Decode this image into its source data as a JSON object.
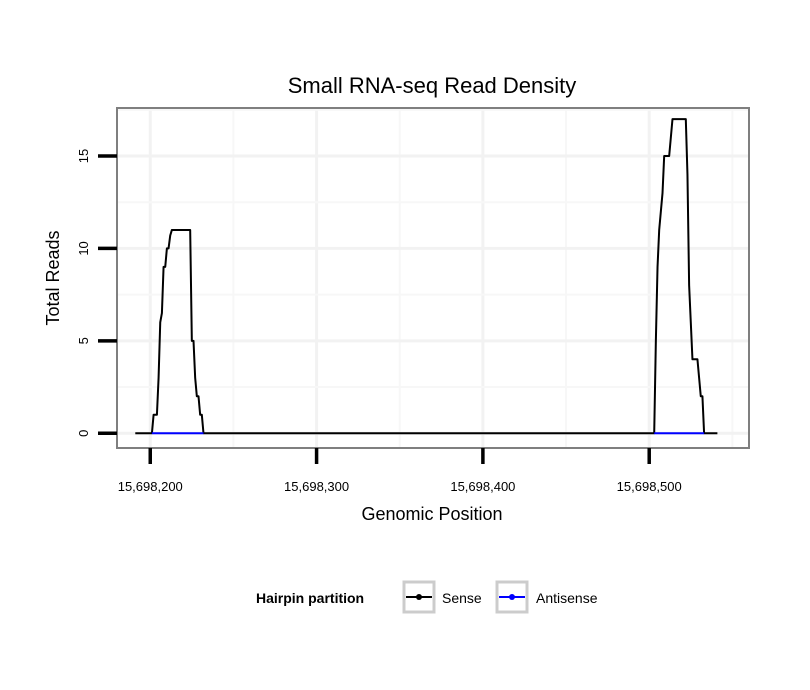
{
  "chart_data": {
    "type": "line",
    "title": "Small RNA-seq Read Density",
    "xlabel": "Genomic Position",
    "ylabel": "Total Reads",
    "xlim": [
      15698180,
      15698560
    ],
    "ylim": [
      -0.8,
      17.6
    ],
    "x_ticks": [
      15698200,
      15698300,
      15698400,
      15698500
    ],
    "x_tick_labels": [
      "15,698,200",
      "15,698,300",
      "15,698,400",
      "15,698,500"
    ],
    "y_ticks": [
      0,
      5,
      10,
      15
    ],
    "y_tick_labels": [
      "0",
      "5",
      "10",
      "15"
    ],
    "grid": true,
    "legend": {
      "title": "Hairpin partition",
      "position": "bottom",
      "entries": [
        {
          "label": "Sense",
          "color": "#000000"
        },
        {
          "label": "Antisense",
          "color": "#0000ff"
        }
      ]
    },
    "series": [
      {
        "name": "Sense",
        "color": "#000000",
        "points": [
          [
            15698191,
            0
          ],
          [
            15698201,
            0
          ],
          [
            15698202,
            1
          ],
          [
            15698204,
            1
          ],
          [
            15698205,
            3
          ],
          [
            15698206,
            6
          ],
          [
            15698207,
            6.5
          ],
          [
            15698208,
            9
          ],
          [
            15698209,
            9
          ],
          [
            15698210,
            10
          ],
          [
            15698211,
            10
          ],
          [
            15698212,
            10.7
          ],
          [
            15698213,
            11
          ],
          [
            15698224,
            11
          ],
          [
            15698225,
            5
          ],
          [
            15698226,
            5
          ],
          [
            15698227,
            3
          ],
          [
            15698228,
            2
          ],
          [
            15698229,
            2
          ],
          [
            15698230,
            1
          ],
          [
            15698231,
            1
          ],
          [
            15698232,
            0
          ],
          [
            15698503,
            0
          ],
          [
            15698504,
            5
          ],
          [
            15698505,
            9
          ],
          [
            15698506,
            11
          ],
          [
            15698507,
            12
          ],
          [
            15698508,
            13
          ],
          [
            15698509,
            15
          ],
          [
            15698512,
            15
          ],
          [
            15698513,
            16
          ],
          [
            15698514,
            17
          ],
          [
            15698522,
            17
          ],
          [
            15698523,
            14
          ],
          [
            15698524,
            8
          ],
          [
            15698525,
            6
          ],
          [
            15698526,
            4
          ],
          [
            15698529,
            4
          ],
          [
            15698530,
            3
          ],
          [
            15698531,
            2
          ],
          [
            15698532,
            2
          ],
          [
            15698533,
            0
          ],
          [
            15698541,
            0
          ]
        ]
      },
      {
        "name": "Antisense",
        "color": "#0000ff",
        "points": [
          [
            15698201,
            0
          ],
          [
            15698232,
            0
          ],
          [
            15698503,
            0
          ],
          [
            15698533,
            0
          ]
        ],
        "segments": [
          [
            0,
            1
          ],
          [
            2,
            3
          ]
        ]
      }
    ]
  }
}
